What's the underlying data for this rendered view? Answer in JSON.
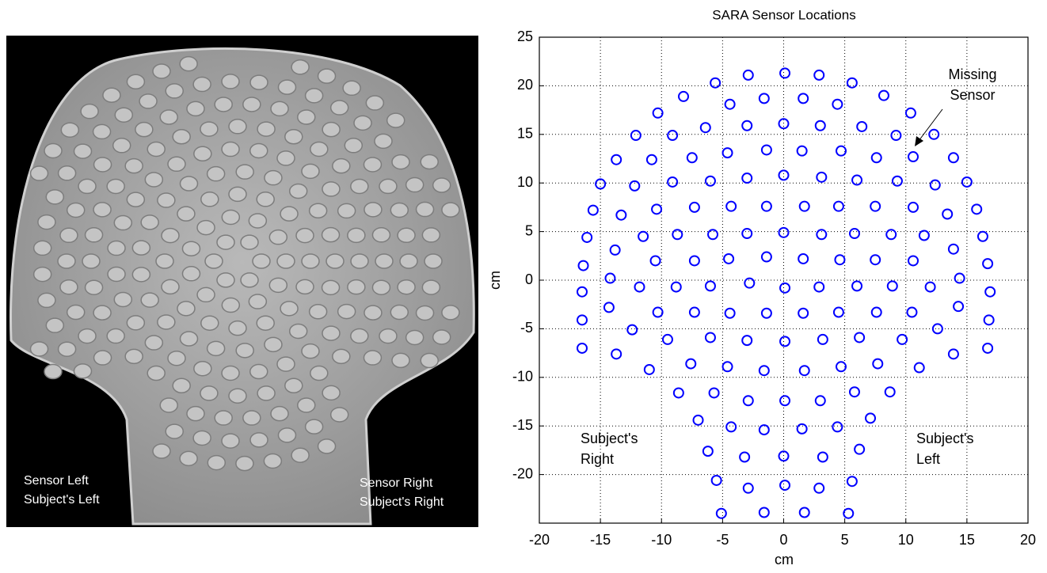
{
  "photo": {
    "left_label": [
      "Sensor Left",
      "Subject's Left"
    ],
    "right_label": [
      "Sensor Right",
      "Subject's Right"
    ]
  },
  "chart_data": {
    "type": "scatter",
    "title": "SARA Sensor Locations",
    "x_label": "cm",
    "y_label": "cm",
    "color": "#0000ff",
    "marker": "open-circle",
    "grid": true,
    "xlim": [
      -20,
      20
    ],
    "ylim": [
      -25,
      25
    ],
    "xticks": [
      -20,
      -15,
      -10,
      -5,
      0,
      5,
      10,
      15,
      20
    ],
    "yticks": [
      -20,
      -15,
      -10,
      -5,
      0,
      5,
      10,
      15,
      20,
      25
    ],
    "annotations": [
      [
        "Missing",
        "Sensor"
      ],
      [
        "Subject's",
        "Right"
      ],
      [
        "Subject's",
        "Left"
      ]
    ],
    "x": [
      0.1,
      -2.9,
      2.9,
      -5.6,
      5.6,
      -4.4,
      4.4,
      -1.6,
      1.6,
      -8.2,
      8.2,
      -10.3,
      10.4,
      0,
      -3.0,
      3.0,
      -6.4,
      6.4,
      -9.1,
      9.2,
      -12.1,
      12.3,
      -1.4,
      1.5,
      -4.6,
      4.7,
      -7.5,
      7.6,
      -10.8,
      10.6,
      -13.7,
      13.9,
      0,
      -3.0,
      3.1,
      -6.0,
      6.0,
      -9.1,
      9.3,
      -12.2,
      12.4,
      -15.0,
      15.0,
      -1.4,
      1.7,
      -4.3,
      4.5,
      -7.3,
      7.5,
      -10.4,
      10.6,
      -13.3,
      13.4,
      -15.6,
      15.8,
      0,
      -3.0,
      3.1,
      -5.8,
      5.8,
      -8.7,
      8.8,
      -11.5,
      11.5,
      -16.1,
      16.3,
      -13.8,
      13.9,
      -1.4,
      1.6,
      -4.5,
      4.6,
      -7.3,
      7.5,
      -10.5,
      10.6,
      -16.4,
      16.7,
      -14.2,
      14.4,
      -2.8,
      2.9,
      -6.0,
      6.0,
      -8.8,
      8.9,
      -11.8,
      12.0,
      0.1,
      -16.5,
      16.9,
      -14.3,
      14.3,
      -10.3,
      10.5,
      -7.3,
      7.6,
      -4.4,
      4.5,
      -1.4,
      1.6,
      -16.5,
      16.8,
      -12.4,
      12.6,
      -9.5,
      9.7,
      -6.0,
      6.2,
      -3.0,
      3.2,
      0.1,
      -16.5,
      16.7,
      -13.7,
      13.9,
      -7.6,
      7.7,
      -4.6,
      4.7,
      -11.0,
      11.1,
      -1.6,
      1.7,
      -8.6,
      8.7,
      -5.7,
      5.8,
      -2.9,
      3.0,
      0.1,
      -7.0,
      7.1,
      -4.3,
      4.4,
      -1.6,
      1.5,
      -6.2,
      6.2,
      -3.2,
      3.2,
      0,
      -5.5,
      5.6,
      -2.9,
      2.9,
      0.1,
      -5.1,
      -1.6,
      1.7,
      5.3
    ],
    "values": [
      21.3,
      21.1,
      21.1,
      20.3,
      20.3,
      18.1,
      18.1,
      18.7,
      18.7,
      18.9,
      19.0,
      17.2,
      17.2,
      16.1,
      15.9,
      15.9,
      15.7,
      15.8,
      14.9,
      14.9,
      14.9,
      15.0,
      13.4,
      13.3,
      13.1,
      13.3,
      12.6,
      12.6,
      12.4,
      12.7,
      12.4,
      12.6,
      10.8,
      10.5,
      10.6,
      10.2,
      10.3,
      10.1,
      10.2,
      9.7,
      9.8,
      9.9,
      10.1,
      7.6,
      7.6,
      7.6,
      7.6,
      7.5,
      7.6,
      7.3,
      7.5,
      6.7,
      6.8,
      7.2,
      7.3,
      4.9,
      4.8,
      4.7,
      4.7,
      4.8,
      4.7,
      4.7,
      4.5,
      4.6,
      4.4,
      4.5,
      3.1,
      3.2,
      2.4,
      2.2,
      2.2,
      2.1,
      2.0,
      2.1,
      2.0,
      2.0,
      1.5,
      1.7,
      0.2,
      0.2,
      -0.3,
      -0.7,
      -0.6,
      -0.6,
      -0.7,
      -0.6,
      -0.7,
      -0.7,
      -0.8,
      -1.2,
      -1.2,
      -2.8,
      -2.7,
      -3.3,
      -3.3,
      -3.3,
      -3.3,
      -3.4,
      -3.3,
      -3.4,
      -3.4,
      -4.1,
      -4.1,
      -5.1,
      -5.0,
      -6.1,
      -6.1,
      -5.9,
      -5.9,
      -6.2,
      -6.1,
      -6.3,
      -7.0,
      -7.0,
      -7.6,
      -7.6,
      -8.6,
      -8.6,
      -8.9,
      -8.9,
      -9.2,
      -9.0,
      -9.3,
      -9.3,
      -11.6,
      -11.5,
      -11.6,
      -11.5,
      -12.4,
      -12.4,
      -12.4,
      -14.4,
      -14.2,
      -15.1,
      -15.1,
      -15.4,
      -15.3,
      -17.6,
      -17.4,
      -18.2,
      -18.2,
      -18.1,
      -20.6,
      -20.7,
      -21.4,
      -21.4,
      -21.1,
      -24.0,
      -23.9,
      -23.9,
      -24.0
    ]
  }
}
